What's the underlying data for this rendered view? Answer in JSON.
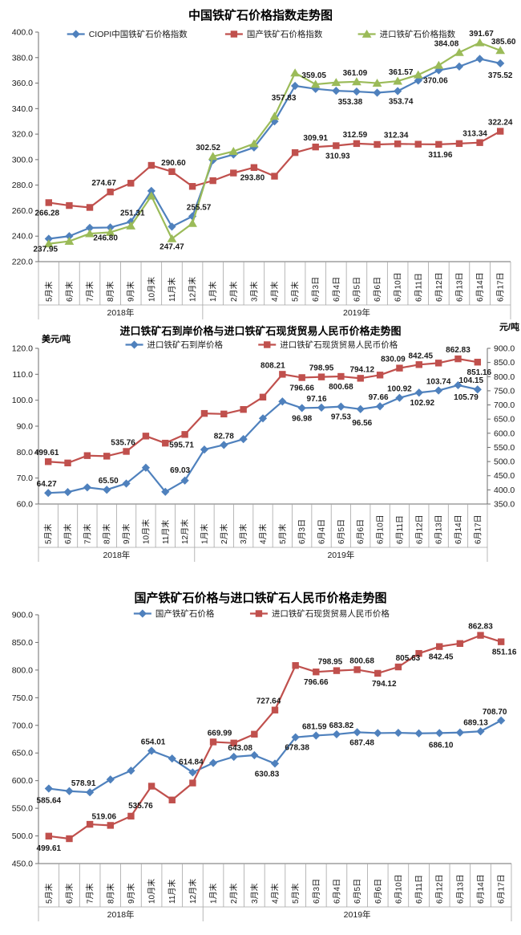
{
  "colors": {
    "blue": "#4F81BD",
    "red": "#C0504D",
    "green": "#9BBB59",
    "axis_line": "#6e6e6e",
    "strip_line": "#a6a6a6",
    "tick_text": "#1a1a1a",
    "data_label": "#1a1a1a"
  },
  "categories": [
    "5月末",
    "6月末",
    "7月末",
    "8月末",
    "9月末",
    "10月末",
    "11月末",
    "12月末",
    "1月末",
    "2月末",
    "3月末",
    "4月末",
    "5月末",
    "6月3日",
    "6月4日",
    "6月5日",
    "6月6日",
    "6月10日",
    "6月11日",
    "6月12日",
    "6月13日",
    "6月14日",
    "6月17日"
  ],
  "groups": [
    {
      "label": "2018年",
      "span": 8
    },
    {
      "label": "2019年",
      "span": 15
    }
  ],
  "chart_data": [
    {
      "type": "line",
      "title": "中国铁矿石价格指数走势图",
      "legend_position": "top",
      "grid": false,
      "y_axis": {
        "min": 220,
        "max": 400,
        "step": 20
      },
      "series": [
        {
          "name": "CIOPI中国铁矿石价格指数",
          "color_key": "blue",
          "marker": "diamond",
          "axis": "left",
          "values": [
            237.95,
            240.0,
            246.5,
            246.8,
            251.31,
            275.5,
            247.47,
            255.57,
            299.5,
            304.0,
            309.5,
            330.0,
            357.83,
            355.5,
            354.0,
            353.38,
            352.5,
            353.74,
            362.0,
            370.06,
            373.0,
            379.0,
            375.52
          ]
        },
        {
          "name": "国产铁矿石价格指数",
          "color_key": "red",
          "marker": "square",
          "axis": "left",
          "values": [
            266.28,
            264.0,
            262.5,
            274.67,
            281.5,
            295.5,
            290.6,
            279.0,
            283.5,
            289.5,
            293.8,
            287.0,
            305.5,
            309.91,
            310.93,
            312.59,
            311.9,
            312.34,
            312.1,
            311.96,
            312.6,
            313.34,
            322.24
          ]
        },
        {
          "name": "进口铁矿石价格指数",
          "color_key": "green",
          "marker": "triangle",
          "axis": "left",
          "values": [
            234.0,
            236.0,
            242.0,
            243.0,
            248.0,
            271.5,
            238.0,
            250.0,
            302.52,
            306.5,
            312.5,
            334.0,
            368.0,
            359.05,
            360.5,
            361.09,
            360.0,
            361.57,
            366.5,
            374.0,
            384.08,
            391.67,
            385.6
          ]
        }
      ],
      "point_labels": [
        [
          0,
          0,
          "237.95",
          "b",
          -4,
          0
        ],
        [
          0,
          3,
          "246.80",
          "b",
          -6,
          0
        ],
        [
          0,
          4,
          "251.31",
          "a",
          2,
          0
        ],
        [
          0,
          6,
          "247.47",
          "b",
          0,
          12
        ],
        [
          0,
          7,
          "255.57",
          "a",
          8,
          0
        ],
        [
          0,
          12,
          "357.83",
          "b",
          -14,
          2
        ],
        [
          0,
          15,
          "353.38",
          "b",
          -8,
          0
        ],
        [
          0,
          17,
          "353.74",
          "b",
          4,
          0
        ],
        [
          0,
          19,
          "370.06",
          "b",
          -4,
          0
        ],
        [
          0,
          22,
          "375.52",
          "b",
          0,
          2
        ],
        [
          1,
          0,
          "266.28",
          "b",
          -2,
          0
        ],
        [
          1,
          3,
          "274.67",
          "a",
          -8,
          0
        ],
        [
          1,
          6,
          "290.60",
          "a",
          2,
          0
        ],
        [
          1,
          10,
          "293.80",
          "b",
          -2,
          0
        ],
        [
          1,
          13,
          "309.91",
          "a",
          0,
          0
        ],
        [
          1,
          14,
          "310.93",
          "b",
          2,
          0
        ],
        [
          1,
          15,
          "312.59",
          "a",
          -2,
          0
        ],
        [
          1,
          17,
          "312.34",
          "a",
          -2,
          0
        ],
        [
          1,
          19,
          "311.96",
          "b",
          2,
          0
        ],
        [
          1,
          21,
          "313.34",
          "a",
          -6,
          0
        ],
        [
          1,
          22,
          "322.24",
          "a",
          0,
          0
        ],
        [
          2,
          8,
          "302.52",
          "a",
          -6,
          0
        ],
        [
          2,
          13,
          "359.05",
          "a",
          -2,
          0
        ],
        [
          2,
          15,
          "361.09",
          "a",
          -2,
          0
        ],
        [
          2,
          17,
          "361.57",
          "a",
          4,
          0
        ],
        [
          2,
          20,
          "384.08",
          "a",
          -16,
          0
        ],
        [
          2,
          21,
          "391.67",
          "a",
          2,
          0
        ],
        [
          2,
          22,
          "385.60",
          "a",
          4,
          0
        ]
      ]
    },
    {
      "type": "line",
      "title": "进口铁矿石到岸价格与进口铁矿石现货贸易人民币价格走势图",
      "legend_position": "top",
      "grid": false,
      "unit_left": "美元/吨",
      "unit_right": "元/吨",
      "y_axis": {
        "min": 60,
        "max": 120,
        "step": 10
      },
      "y_axis_right": {
        "min": 350,
        "max": 900,
        "step": 50
      },
      "series": [
        {
          "name": "进口铁矿石到岸价格",
          "color_key": "blue",
          "marker": "diamond",
          "axis": "left",
          "values": [
            64.27,
            64.6,
            66.4,
            65.5,
            67.9,
            74.0,
            64.7,
            69.03,
            81.0,
            82.78,
            85.0,
            93.0,
            99.5,
            96.98,
            97.16,
            97.53,
            96.56,
            97.66,
            100.92,
            102.92,
            103.74,
            105.79,
            104.15
          ]
        },
        {
          "name": "进口铁矿石现货贸易人民币价格",
          "color_key": "red",
          "marker": "square",
          "axis": "right",
          "values": [
            499.61,
            495.0,
            521.0,
            519.06,
            535.76,
            590.0,
            565.0,
            595.71,
            669.99,
            668.0,
            684.0,
            727.64,
            808.21,
            796.66,
            798.95,
            800.68,
            794.12,
            805.63,
            830.09,
            842.45,
            848.0,
            862.83,
            851.16
          ]
        }
      ],
      "point_labels": [
        [
          0,
          0,
          "64.27",
          "a",
          -2,
          0
        ],
        [
          0,
          3,
          "65.50",
          "a",
          2,
          0
        ],
        [
          0,
          7,
          "69.03",
          "a",
          -6,
          -2
        ],
        [
          0,
          9,
          "82.78",
          "a",
          0,
          0
        ],
        [
          0,
          13,
          "96.98",
          "b",
          0,
          0
        ],
        [
          0,
          14,
          "97.16",
          "a",
          -6,
          0
        ],
        [
          0,
          15,
          "97.53",
          "b",
          0,
          0
        ],
        [
          0,
          16,
          "96.56",
          "b",
          2,
          4
        ],
        [
          0,
          17,
          "97.66",
          "a",
          -2,
          0
        ],
        [
          0,
          18,
          "100.92",
          "a",
          0,
          0
        ],
        [
          0,
          19,
          "102.92",
          "b",
          4,
          0
        ],
        [
          0,
          20,
          "103.74",
          "a",
          0,
          0
        ],
        [
          0,
          21,
          "105.79",
          "b",
          10,
          2
        ],
        [
          0,
          22,
          "104.15",
          "a",
          -8,
          0
        ],
        [
          1,
          0,
          "499.61",
          "a",
          -2,
          0
        ],
        [
          1,
          4,
          "535.76",
          "a",
          -4,
          0
        ],
        [
          1,
          7,
          "595.71",
          "b",
          -4,
          0
        ],
        [
          1,
          12,
          "808.21",
          "a",
          -12,
          0
        ],
        [
          1,
          13,
          "796.66",
          "b",
          0,
          0
        ],
        [
          1,
          14,
          "798.95",
          "a",
          0,
          0
        ],
        [
          1,
          15,
          "800.68",
          "b",
          0,
          0
        ],
        [
          1,
          16,
          "794.12",
          "a",
          2,
          0
        ],
        [
          1,
          18,
          "830.09",
          "a",
          -8,
          0
        ],
        [
          1,
          19,
          "842.45",
          "a",
          2,
          0
        ],
        [
          1,
          21,
          "862.83",
          "a",
          0,
          0
        ],
        [
          1,
          22,
          "851.16",
          "b",
          2,
          0
        ]
      ]
    },
    {
      "type": "line",
      "title": "国产铁矿石价格与进口铁矿石人民币价格走势图",
      "legend_position": "top",
      "grid": false,
      "y_axis": {
        "min": 450,
        "max": 900,
        "step": 50
      },
      "series": [
        {
          "name": "国产铁矿石价格",
          "color_key": "blue",
          "marker": "diamond",
          "axis": "left",
          "values": [
            585.64,
            581.0,
            578.91,
            602.0,
            618.0,
            654.01,
            640.0,
            614.84,
            632.0,
            643.08,
            646.0,
            630.83,
            678.38,
            681.59,
            683.82,
            687.48,
            686.0,
            686.5,
            685.5,
            686.1,
            687.0,
            689.13,
            708.7
          ]
        },
        {
          "name": "进口铁矿石现货贸易人民币价格",
          "color_key": "red",
          "marker": "square",
          "axis": "left",
          "values": [
            499.61,
            495.0,
            521.0,
            519.06,
            535.76,
            590.0,
            565.0,
            595.71,
            669.99,
            668.0,
            684.0,
            727.64,
            808.21,
            796.66,
            798.95,
            800.68,
            794.12,
            805.63,
            830.09,
            842.45,
            848.0,
            862.83,
            851.16
          ]
        }
      ],
      "point_labels": [
        [
          0,
          0,
          "585.64",
          "b",
          0,
          2
        ],
        [
          0,
          2,
          "578.91",
          "a",
          -8,
          0
        ],
        [
          0,
          5,
          "654.01",
          "a",
          2,
          0
        ],
        [
          0,
          7,
          "614.84",
          "a",
          -2,
          -2
        ],
        [
          0,
          9,
          "643.08",
          "a",
          8,
          0
        ],
        [
          0,
          11,
          "630.83",
          "b",
          -10,
          0
        ],
        [
          0,
          12,
          "678.38",
          "b",
          2,
          0
        ],
        [
          0,
          13,
          "681.59",
          "a",
          -2,
          0
        ],
        [
          0,
          14,
          "683.82",
          "a",
          6,
          0
        ],
        [
          0,
          15,
          "687.48",
          "b",
          6,
          0
        ],
        [
          0,
          19,
          "686.10",
          "b",
          2,
          2
        ],
        [
          0,
          21,
          "689.13",
          "a",
          -6,
          0
        ],
        [
          0,
          22,
          "708.70",
          "a",
          -8,
          0
        ],
        [
          1,
          0,
          "499.61",
          "b",
          0,
          2
        ],
        [
          1,
          3,
          "519.06",
          "a",
          -8,
          0
        ],
        [
          1,
          4,
          "535.76",
          "a",
          12,
          -2
        ],
        [
          1,
          8,
          "669.99",
          "a",
          8,
          0
        ],
        [
          1,
          11,
          "727.64",
          "a",
          -8,
          0
        ],
        [
          1,
          13,
          "796.66",
          "b",
          0,
          0
        ],
        [
          1,
          14,
          "798.95",
          "a",
          -8,
          0
        ],
        [
          1,
          15,
          "800.68",
          "a",
          6,
          0
        ],
        [
          1,
          16,
          "794.12",
          "b",
          8,
          0
        ],
        [
          1,
          17,
          "805.63",
          "a",
          12,
          0
        ],
        [
          1,
          19,
          "842.45",
          "b",
          2,
          0
        ],
        [
          1,
          21,
          "862.83",
          "a",
          0,
          0
        ],
        [
          1,
          22,
          "851.16",
          "b",
          4,
          0
        ]
      ]
    }
  ]
}
